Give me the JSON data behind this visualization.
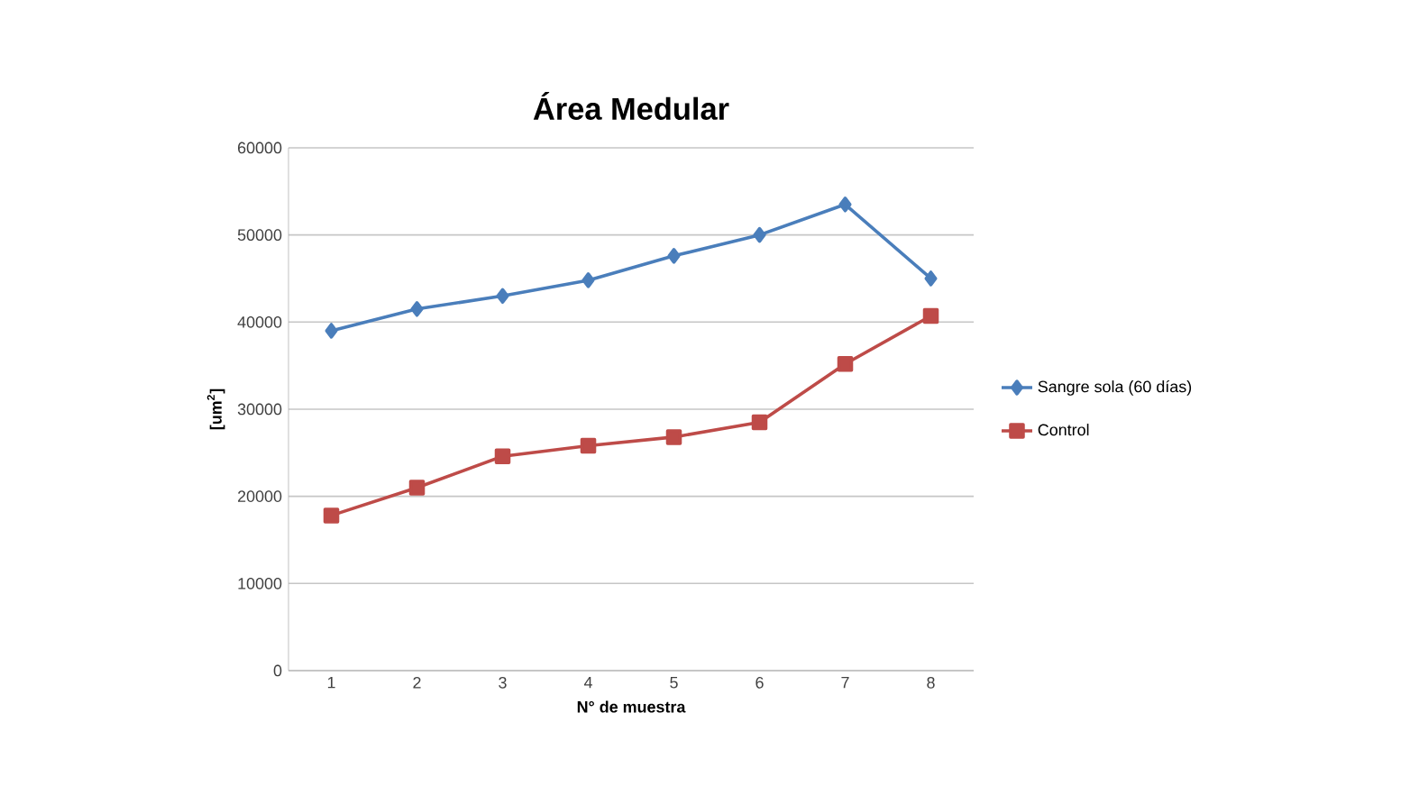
{
  "chart_data": {
    "type": "line",
    "title": "Área Medular",
    "xlabel": "N° de muestra",
    "ylabel": "[um$^{2}$]",
    "categories": [
      "1",
      "2",
      "3",
      "4",
      "5",
      "6",
      "7",
      "8"
    ],
    "series": [
      {
        "name": "Sangre sola (60 días)",
        "color": "#4a7ebb",
        "marker": "diamond",
        "values": [
          39000,
          41500,
          43000,
          44800,
          47600,
          50000,
          53500,
          45000
        ]
      },
      {
        "name": "Control",
        "color": "#be4b48",
        "marker": "square",
        "values": [
          17800,
          21000,
          24600,
          25800,
          26800,
          28500,
          35200,
          40700
        ]
      }
    ],
    "ylim": [
      0,
      60000
    ],
    "yticks": [
      0,
      10000,
      20000,
      30000,
      40000,
      50000,
      60000
    ],
    "grid": "y",
    "legend": "right",
    "line_style": "solid"
  }
}
